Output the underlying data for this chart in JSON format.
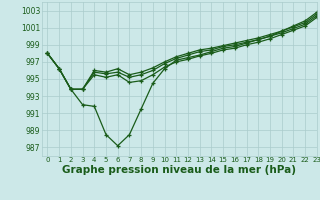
{
  "bg_color": "#cce8e8",
  "grid_color": "#aacccc",
  "line_color": "#1a5c1a",
  "xlabel": "Graphe pression niveau de la mer (hPa)",
  "ylim": [
    986,
    1004
  ],
  "xlim": [
    -0.5,
    23
  ],
  "yticks": [
    987,
    989,
    991,
    993,
    995,
    997,
    999,
    1001,
    1003
  ],
  "xticks": [
    0,
    1,
    2,
    3,
    4,
    5,
    6,
    7,
    8,
    9,
    10,
    11,
    12,
    13,
    14,
    15,
    16,
    17,
    18,
    19,
    20,
    21,
    22,
    23
  ],
  "series": [
    [
      998.0,
      996.2,
      993.8,
      992.0,
      991.8,
      988.5,
      987.2,
      988.5,
      991.5,
      994.5,
      996.2,
      997.2,
      997.5,
      997.8,
      998.2,
      998.6,
      998.8,
      999.2,
      999.6,
      1000.0,
      1000.6,
      1001.2,
      1001.8,
      1002.8
    ],
    [
      998.0,
      996.2,
      993.8,
      993.8,
      995.5,
      995.2,
      995.5,
      994.6,
      994.8,
      995.5,
      996.4,
      997.0,
      997.3,
      997.7,
      998.0,
      998.4,
      998.6,
      999.0,
      999.3,
      999.7,
      1000.2,
      1000.7,
      1001.2,
      1002.2
    ],
    [
      998.0,
      996.2,
      993.8,
      993.8,
      995.8,
      995.6,
      995.8,
      995.2,
      995.5,
      996.0,
      996.8,
      997.4,
      997.8,
      998.2,
      998.4,
      998.8,
      999.0,
      999.3,
      999.6,
      1000.0,
      1000.4,
      1000.9,
      1001.4,
      1002.4
    ],
    [
      998.0,
      996.2,
      993.8,
      993.8,
      996.0,
      995.8,
      996.2,
      995.5,
      995.8,
      996.3,
      997.0,
      997.6,
      998.0,
      998.4,
      998.6,
      998.9,
      999.2,
      999.5,
      999.8,
      1000.2,
      1000.6,
      1001.1,
      1001.6,
      1002.6
    ]
  ]
}
